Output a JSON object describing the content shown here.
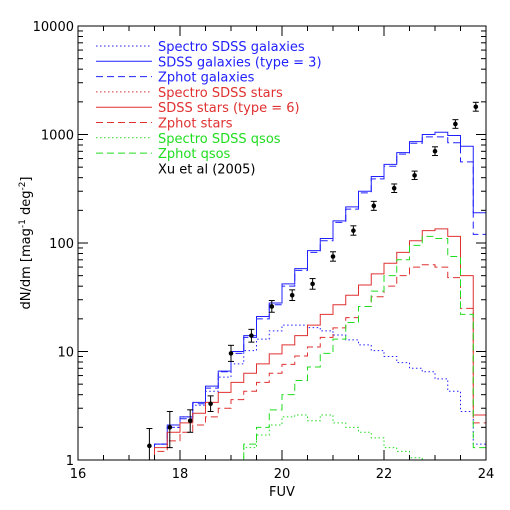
{
  "chart_data": {
    "type": "line",
    "xlabel": "FUV",
    "ylabel_main": "dN/dm [mag",
    "ylabel_sup1": "-1",
    "ylabel_mid": " deg",
    "ylabel_sup2": "-2",
    "ylabel_end": "]",
    "xlim": [
      16,
      24
    ],
    "ylim": [
      1,
      10000
    ],
    "yscale": "log",
    "grid": false,
    "legend_position": "top-left",
    "x_ticks": [
      "16",
      "18",
      "20",
      "22",
      "24"
    ],
    "y_ticks": [
      "1",
      "10",
      "100",
      "1000",
      "10000"
    ],
    "series": [
      {
        "name": "Spectro SDSS galaxies",
        "color": "#2020ff",
        "dash": "1.5,2.5",
        "kind": "step",
        "x": [
          16.0,
          16.25,
          16.5,
          16.75,
          17.0,
          17.25,
          17.5,
          17.75,
          18.0,
          18.25,
          18.5,
          18.75,
          19.0,
          19.25,
          19.5,
          19.75,
          20.0,
          20.25,
          20.5,
          20.75,
          21.0,
          21.25,
          21.5,
          21.75,
          22.0,
          22.25,
          22.5,
          22.75,
          23.0,
          23.25,
          23.5,
          23.75
        ],
        "y": [
          1,
          1,
          1,
          1,
          1,
          1,
          1.4,
          2.0,
          2.5,
          3.2,
          4.3,
          5.8,
          7.7,
          10.2,
          13.0,
          15.5,
          17.5,
          17.5,
          16.6,
          15.5,
          14.2,
          12.8,
          11.5,
          10.2,
          9.0,
          7.9,
          7.0,
          6.5,
          5.6,
          4.3,
          2.8,
          1.4
        ]
      },
      {
        "name": "SDSS galaxies (type = 3)",
        "color": "#2020ff",
        "dash": "",
        "kind": "step",
        "x": [
          16.0,
          16.25,
          16.5,
          16.75,
          17.0,
          17.25,
          17.5,
          17.75,
          18.0,
          18.25,
          18.5,
          18.75,
          19.0,
          19.25,
          19.5,
          19.75,
          20.0,
          20.25,
          20.5,
          20.75,
          21.0,
          21.25,
          21.5,
          21.75,
          22.0,
          22.25,
          22.5,
          22.75,
          23.0,
          23.25,
          23.5,
          23.75
        ],
        "y": [
          1,
          1,
          1,
          1,
          1,
          1,
          1.4,
          2.1,
          2.5,
          3.4,
          4.8,
          6.6,
          10.0,
          14.0,
          21.0,
          28.0,
          42.0,
          58.0,
          85.0,
          110,
          160,
          215,
          300,
          410,
          530,
          680,
          860,
          1000,
          1050,
          980,
          780,
          190
        ]
      },
      {
        "name": "Zphot galaxies",
        "color": "#2020ff",
        "dash": "7,4",
        "kind": "step",
        "x": [
          16.0,
          16.25,
          16.5,
          16.75,
          17.0,
          17.25,
          17.5,
          17.75,
          18.0,
          18.25,
          18.5,
          18.75,
          19.0,
          19.25,
          19.5,
          19.75,
          20.0,
          20.25,
          20.5,
          20.75,
          21.0,
          21.25,
          21.5,
          21.75,
          22.0,
          22.25,
          22.5,
          22.75,
          23.0,
          23.25,
          23.5,
          23.75
        ],
        "y": [
          1,
          1,
          1,
          1,
          1,
          1,
          1.4,
          2.0,
          2.4,
          3.3,
          4.6,
          6.5,
          9.6,
          13.5,
          20.0,
          27.0,
          40.0,
          56.0,
          82.0,
          105,
          155,
          205,
          290,
          390,
          510,
          660,
          830,
          950,
          950,
          840,
          560,
          120
        ]
      },
      {
        "name": "Spectro SDSS stars",
        "color": "#e03030",
        "dash": "1.5,2.5",
        "kind": "step",
        "x": [],
        "y": []
      },
      {
        "name": "SDSS stars (type = 6)",
        "color": "#e03030",
        "dash": "",
        "kind": "step",
        "x": [
          16.0,
          16.25,
          16.5,
          16.75,
          17.0,
          17.25,
          17.5,
          17.75,
          18.0,
          18.25,
          18.5,
          18.75,
          19.0,
          19.25,
          19.5,
          19.75,
          20.0,
          20.25,
          20.5,
          20.75,
          21.0,
          21.25,
          21.5,
          21.75,
          22.0,
          22.25,
          22.5,
          22.75,
          23.0,
          23.25,
          23.5,
          23.75
        ],
        "y": [
          1,
          1,
          1,
          1,
          1,
          1,
          1.3,
          1.8,
          2.2,
          2.7,
          3.4,
          4.2,
          5.2,
          6.3,
          7.7,
          9.5,
          11.5,
          14.0,
          17.5,
          22.0,
          27.0,
          33.0,
          41.0,
          52.0,
          65.0,
          82.0,
          105,
          130,
          135,
          115,
          50,
          2.6
        ]
      },
      {
        "name": "Zphot stars",
        "color": "#e03030",
        "dash": "7,4",
        "kind": "step",
        "x": [
          16.0,
          16.25,
          16.5,
          16.75,
          17.0,
          17.25,
          17.5,
          17.75,
          18.0,
          18.25,
          18.5,
          18.75,
          19.0,
          19.25,
          19.5,
          19.75,
          20.0,
          20.25,
          20.5,
          20.75,
          21.0,
          21.25,
          21.5,
          21.75,
          22.0,
          22.25,
          22.5,
          22.75,
          23.0,
          23.25,
          23.5,
          23.75
        ],
        "y": [
          1,
          1,
          1,
          1,
          1,
          1,
          1.2,
          1.5,
          1.8,
          2.1,
          2.5,
          3.0,
          3.6,
          4.3,
          5.2,
          6.3,
          7.6,
          9.1,
          11.0,
          13.5,
          16.5,
          20.5,
          26.0,
          32.0,
          40.0,
          50.0,
          60.0,
          63.0,
          60.0,
          48.0,
          25.0,
          2.2
        ]
      },
      {
        "name": "Spectro SDSS qsos",
        "color": "#20dd20",
        "dash": "1.5,2.5",
        "kind": "step",
        "x": [
          16.0,
          16.25,
          16.5,
          16.75,
          17.0,
          17.25,
          17.5,
          17.75,
          18.0,
          18.25,
          18.5,
          18.75,
          19.0,
          19.25,
          19.5,
          19.75,
          20.0,
          20.25,
          20.5,
          20.75,
          21.0,
          21.25,
          21.5,
          21.75,
          22.0,
          22.25,
          22.5,
          22.75,
          23.0,
          23.25,
          23.5,
          23.75
        ],
        "y": [
          1,
          1,
          1,
          1,
          1,
          1,
          1,
          1,
          1,
          1,
          1,
          1,
          1,
          1.3,
          1.7,
          2.1,
          2.5,
          2.6,
          2.3,
          2.6,
          2.2,
          2.0,
          1.8,
          1.6,
          1.3,
          1.2,
          1.05,
          1,
          1,
          1,
          1,
          1
        ]
      },
      {
        "name": "Zphot qsos",
        "color": "#20dd20",
        "dash": "7,4",
        "kind": "step",
        "x": [
          16.0,
          16.25,
          16.5,
          16.75,
          17.0,
          17.25,
          17.5,
          17.75,
          18.0,
          18.25,
          18.5,
          18.75,
          19.0,
          19.25,
          19.5,
          19.75,
          20.0,
          20.25,
          20.5,
          20.75,
          21.0,
          21.25,
          21.5,
          21.75,
          22.0,
          22.25,
          22.5,
          22.75,
          23.0,
          23.25,
          23.5,
          23.75
        ],
        "y": [
          1,
          1,
          1,
          1,
          1,
          1,
          1,
          1,
          1,
          1,
          1,
          1,
          1,
          1.4,
          2.0,
          2.9,
          4.0,
          5.4,
          7.2,
          9.6,
          13.0,
          18.5,
          26.0,
          36.0,
          50.0,
          70.0,
          95.0,
          115,
          110,
          75.0,
          22.0,
          1.3
        ]
      },
      {
        "name": "Xu et al (2005)",
        "color": "#000000",
        "dash": "",
        "kind": "points",
        "x": [
          17.4,
          17.8,
          18.2,
          18.6,
          19.0,
          19.4,
          19.8,
          20.2,
          20.6,
          21.0,
          21.4,
          21.8,
          22.2,
          22.6,
          23.0,
          23.4,
          23.8
        ],
        "y": [
          1.35,
          2.0,
          2.3,
          3.3,
          9.6,
          14.0,
          26.0,
          33.0,
          42.0,
          75.0,
          130,
          220,
          320,
          420,
          700,
          1250,
          1800
        ],
        "err_low": [
          0.45,
          0.7,
          0.5,
          0.5,
          1.5,
          1.8,
          3.0,
          3.5,
          4.5,
          7.0,
          12.0,
          20.0,
          28.0,
          35.0,
          60.0,
          110,
          160
        ],
        "err_high": [
          0.6,
          0.8,
          0.6,
          0.6,
          1.8,
          2.0,
          3.5,
          4.0,
          5.0,
          8.0,
          14.0,
          22.0,
          30.0,
          40.0,
          70.0,
          120,
          180
        ]
      }
    ]
  }
}
